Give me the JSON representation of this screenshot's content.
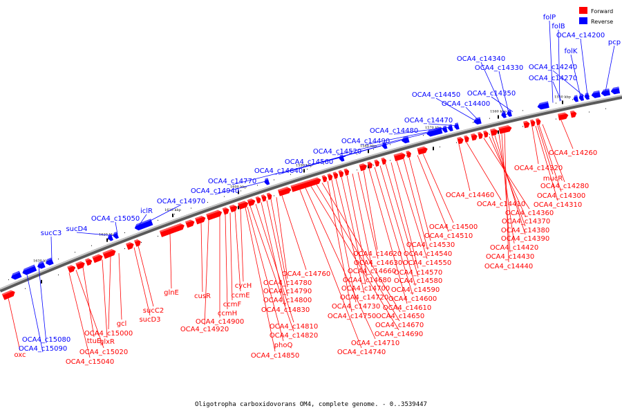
{
  "caption": "Oligotropha carboxidovorans OM4, complete genome. - 0..3539447",
  "legend": [
    {
      "label": "Forward",
      "color": "#ff0000"
    },
    {
      "label": "Reverse",
      "color": "#0000ff"
    }
  ],
  "colors": {
    "forward": "#ff0000",
    "reverse": "#0000ff",
    "backbone": "#8c8c8c"
  },
  "ticks": [
    "1550 kbp",
    "1560 kbp",
    "1570 kbp",
    "1580 kbp",
    "1590 kbp",
    "1600 kbp",
    "1610 kbp",
    "1620 kbp",
    "1630 kbp"
  ],
  "reverse_labels": [
    "folP",
    "folB",
    "OCA4_c14200",
    "folK",
    "pcp",
    "OCA4_c14240",
    "OCA4_c14270",
    "OCA4_c14340",
    "OCA4_c14330",
    "OCA4_c14350",
    "OCA4_c14450",
    "OCA4_c14400",
    "OCA4_c14470",
    "OCA4_c14480",
    "OCA4_c14490",
    "OCA4_c14520",
    "OCA4_c14560",
    "OCA4_c14640",
    "OCA4_c14770",
    "OCA4_c14940",
    "OCA4_c14970",
    "iclR",
    "OCA4_c15050",
    "sucD4",
    "sucC3",
    "OCA4_c15080",
    "OCA4_c15090"
  ],
  "forward_labels": [
    "OCA4_c14260",
    "OCA4_c14320",
    "mucR",
    "OCA4_c14280",
    "OCA4_c14300",
    "OCA4_c14310",
    "OCA4_c14460",
    "OCA4_c14410",
    "OCA4_c14360",
    "OCA4_c14370",
    "OCA4_c14380",
    "OCA4_c14390",
    "OCA4_c14420",
    "OCA4_c14430",
    "OCA4_c14440",
    "OCA4_c14500",
    "OCA4_c14510",
    "OCA4_c14530",
    "OCA4_c14540",
    "OCA4_c14550",
    "OCA4_c14570",
    "OCA4_c14580",
    "OCA4_c14590",
    "OCA4_c14600",
    "OCA4_c14610",
    "OCA4_c14620",
    "OCA4_c14630",
    "OCA4_c14660",
    "OCA4_c14680",
    "OCA4_c14700",
    "OCA4_c14720",
    "OCA4_c14730",
    "OCA4_c14750",
    "OCA4_c14650",
    "OCA4_c14670",
    "OCA4_c14690",
    "OCA4_c14710",
    "OCA4_c14740",
    "OCA4_c14760",
    "OCA4_c14780",
    "OCA4_c14790",
    "OCA4_c14800",
    "OCA4_c14830",
    "OCA4_c14810",
    "OCA4_c14820",
    "phoQ",
    "OCA4_c14850",
    "cycH",
    "ccmE",
    "ccmF",
    "ccmH",
    "OCA4_c14900",
    "OCA4_c14920",
    "cusR",
    "glnE",
    "sucC2",
    "sucD3",
    "gcl",
    "OCA4_c15000",
    "glxR",
    "ttuE",
    "OCA4_c15020",
    "OCA4_c15040",
    "oxc"
  ]
}
